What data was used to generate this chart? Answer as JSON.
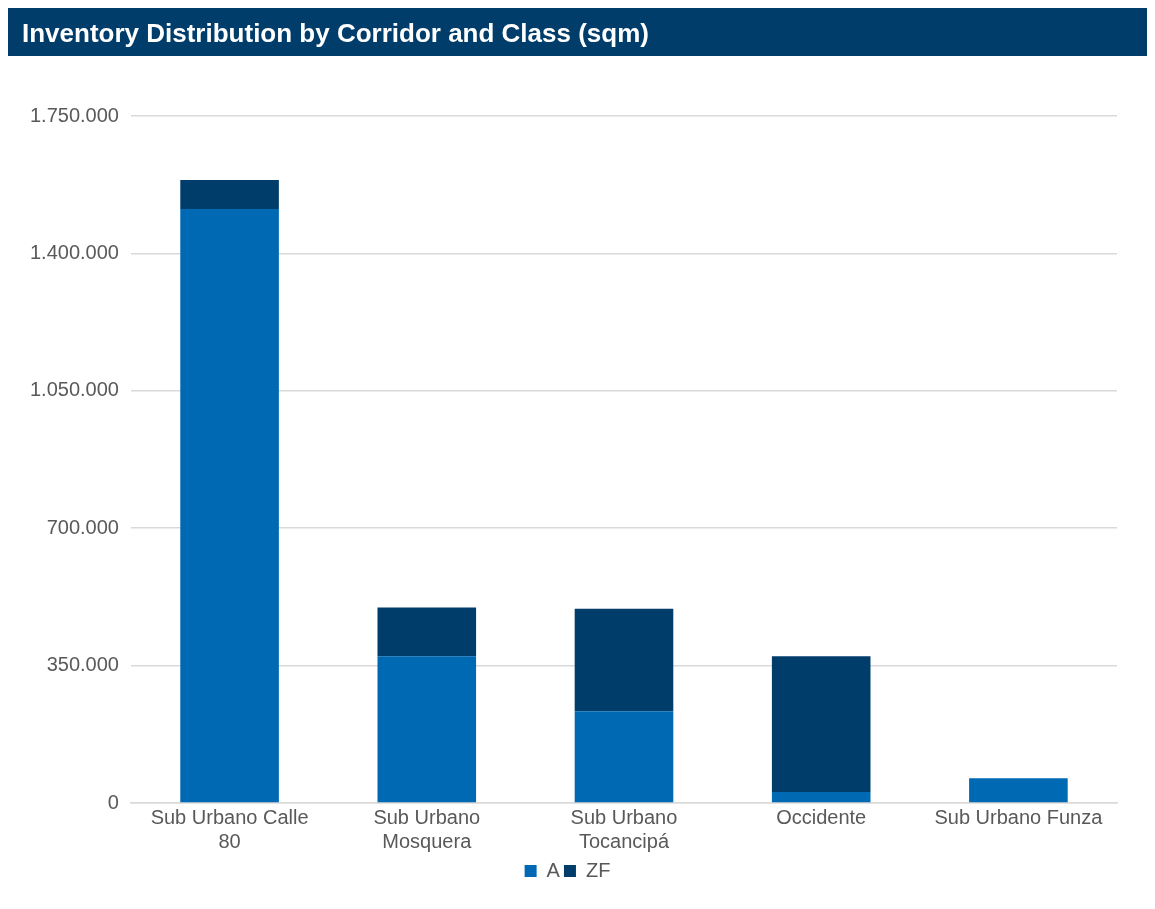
{
  "chart_data": {
    "type": "bar",
    "title": "Inventory Distribution by Corridor and Class (sqm)",
    "categories": [
      "Sub Urbano Calle 80",
      "Sub Urbano Mosquera",
      "Sub Urbano Tocancipá",
      "Occidente",
      "Sub Urbano Funza"
    ],
    "series": [
      {
        "name": "A",
        "color": "#0069b4",
        "values": [
          1513000,
          374000,
          234000,
          28000,
          63000
        ]
      },
      {
        "name": "ZF",
        "color": "#003d6b",
        "values": [
          74000,
          124000,
          261000,
          346000,
          0
        ]
      }
    ],
    "stacked": true,
    "ylim": [
      0,
      1750000
    ],
    "yticks": [
      {
        "value": 0,
        "label": "0"
      },
      {
        "value": 350000,
        "label": "350.000"
      },
      {
        "value": 700000,
        "label": "700.000"
      },
      {
        "value": 1050000,
        "label": "1.050.000"
      },
      {
        "value": 1400000,
        "label": "1.400.000"
      },
      {
        "value": 1750000,
        "label": "1.750.000"
      }
    ],
    "grid": "y",
    "legend": "bottom"
  }
}
